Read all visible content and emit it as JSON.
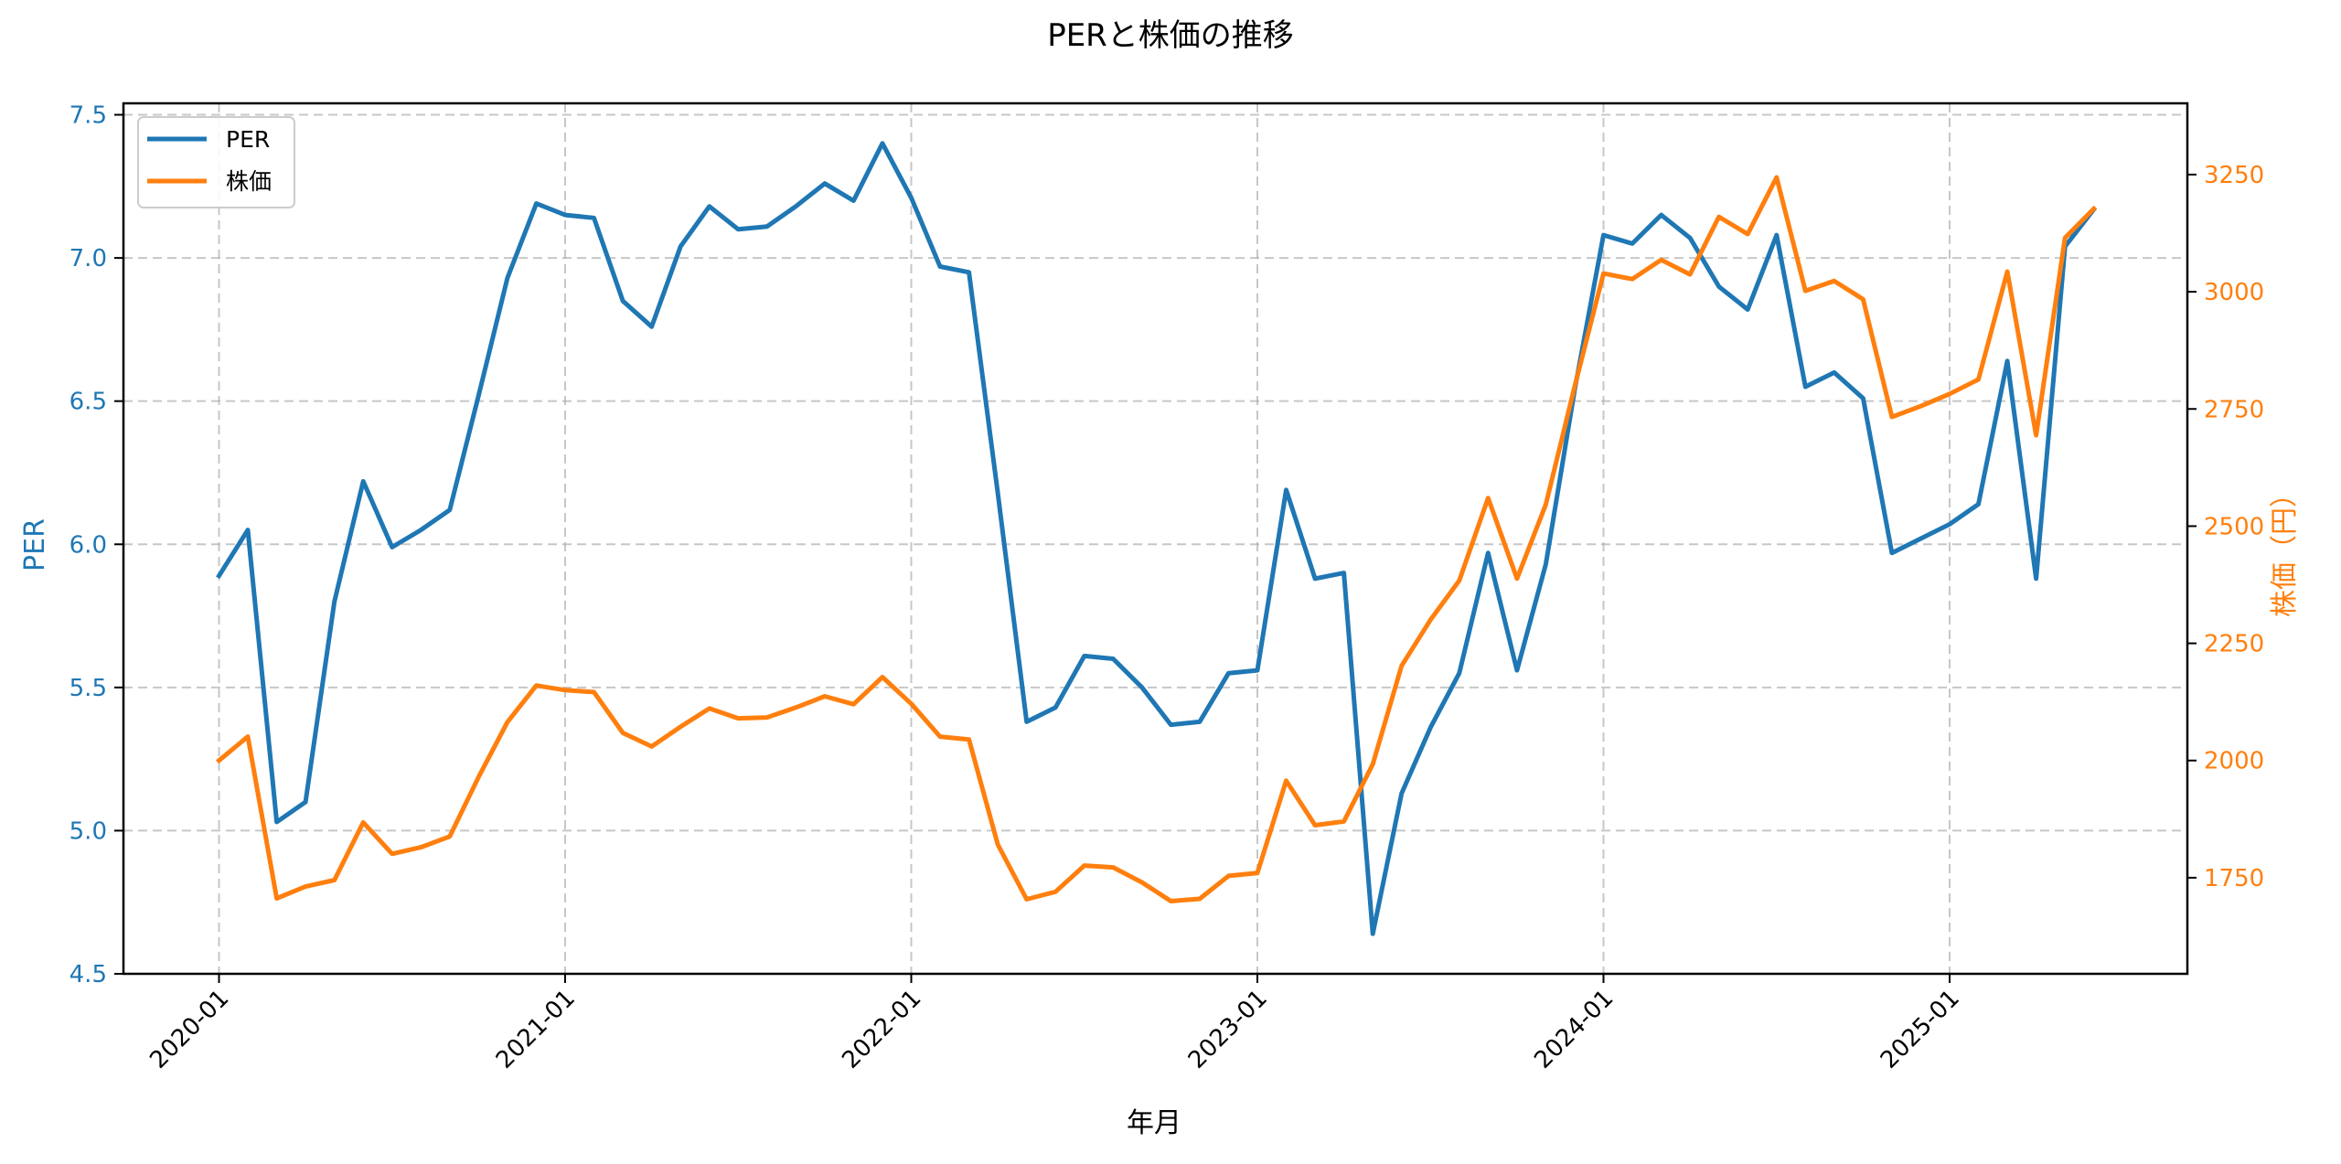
{
  "chart_data": {
    "type": "line",
    "title": "PERと株価の推移",
    "xlabel": "年月",
    "ylabel": "PER",
    "ylabel_right": "株価（円）",
    "grid": true,
    "legend_position": "upper left",
    "x_tick_labels": [
      "2020-01",
      "2021-01",
      "2022-01",
      "2023-01",
      "2024-01",
      "2025-01"
    ],
    "y_ticks_left": [
      "4.5",
      "5.0",
      "5.5",
      "6.0",
      "6.5",
      "7.0",
      "7.5"
    ],
    "y_ticks_right": [
      "1750",
      "2000",
      "2250",
      "2500",
      "2750",
      "3000",
      "3250"
    ],
    "ylim": [
      4.5,
      7.54
    ],
    "ylim_right": [
      1545,
      3402
    ],
    "colors": {
      "PER": "#1f77b4",
      "株価": "#ff7f0e"
    },
    "x": [
      "2020-01",
      "2020-02",
      "2020-03",
      "2020-04",
      "2020-05",
      "2020-06",
      "2020-07",
      "2020-08",
      "2020-09",
      "2020-10",
      "2020-11",
      "2020-12",
      "2021-01",
      "2021-02",
      "2021-03",
      "2021-04",
      "2021-05",
      "2021-06",
      "2021-07",
      "2021-08",
      "2021-09",
      "2021-10",
      "2021-11",
      "2021-12",
      "2022-01",
      "2022-02",
      "2022-03",
      "2022-04",
      "2022-05",
      "2022-06",
      "2022-07",
      "2022-08",
      "2022-09",
      "2022-10",
      "2022-11",
      "2022-12",
      "2023-01",
      "2023-02",
      "2023-03",
      "2023-04",
      "2023-05",
      "2023-06",
      "2023-07",
      "2023-08",
      "2023-09",
      "2023-10",
      "2023-11",
      "2023-12",
      "2024-01",
      "2024-02",
      "2024-03",
      "2024-04",
      "2024-05",
      "2024-06",
      "2024-07",
      "2024-08",
      "2024-09",
      "2024-10",
      "2024-11",
      "2024-12",
      "2025-01",
      "2025-02",
      "2025-03",
      "2025-04",
      "2025-05",
      "2025-06"
    ],
    "series": [
      {
        "name": "PER",
        "axis": "left",
        "values": [
          5.89,
          6.05,
          5.03,
          5.1,
          5.8,
          6.22,
          5.99,
          6.05,
          6.12,
          6.52,
          6.93,
          7.19,
          7.15,
          7.14,
          6.85,
          6.76,
          7.04,
          7.18,
          7.1,
          7.11,
          7.18,
          7.26,
          7.2,
          7.4,
          7.21,
          6.97,
          6.95,
          6.18,
          5.38,
          5.43,
          5.61,
          5.6,
          5.5,
          5.37,
          5.38,
          5.55,
          5.56,
          6.19,
          5.88,
          5.9,
          4.64,
          5.13,
          5.36,
          5.55,
          5.97,
          5.56,
          5.93,
          6.54,
          7.08,
          7.05,
          7.15,
          7.07,
          6.9,
          6.82,
          7.08,
          6.55,
          6.6,
          6.51,
          5.97,
          6.02,
          6.07,
          6.14,
          6.64,
          5.88,
          7.04,
          7.17
        ]
      },
      {
        "name": "株価",
        "axis": "right",
        "values": [
          2000,
          2051,
          1706,
          1731,
          1745,
          1868,
          1801,
          1815,
          1838,
          1965,
          2082,
          2160,
          2150,
          2146,
          2059,
          2030,
          2072,
          2111,
          2090,
          2092,
          2113,
          2137,
          2120,
          2178,
          2121,
          2051,
          2045,
          1821,
          1704,
          1720,
          1776,
          1772,
          1740,
          1700,
          1705,
          1754,
          1760,
          1957,
          1862,
          1870,
          1992,
          2202,
          2300,
          2384,
          2560,
          2388,
          2546,
          2798,
          3039,
          3027,
          3068,
          3037,
          3160,
          3123,
          3244,
          3002,
          3023,
          2984,
          2733,
          2756,
          2782,
          2813,
          3043,
          2694,
          3115,
          3177
        ]
      }
    ]
  },
  "legend": {
    "items": [
      {
        "label": "PER",
        "color": "#1f77b4"
      },
      {
        "label": "株価",
        "color": "#ff7f0e"
      }
    ]
  }
}
